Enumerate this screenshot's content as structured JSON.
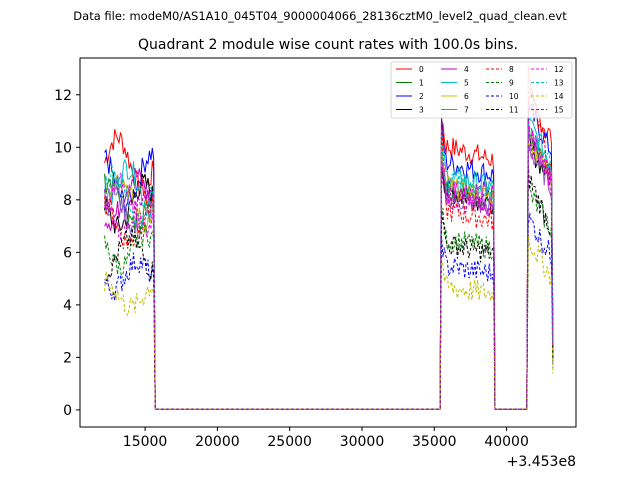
{
  "figure": {
    "suptitle": "Data file: modeM0/AS1A10_045T04_9000004066_28136cztM0_level2_quad_clean.evt"
  },
  "chart_data": {
    "type": "line",
    "title": "Quadrant 2 module wise count rates with 100.0s bins.",
    "xlabel": "",
    "ylabel": "",
    "x_offset_label": "+3.453e8",
    "xlim": [
      10500,
      44800
    ],
    "ylim": [
      -0.65,
      13.4
    ],
    "xticks": [
      15000,
      20000,
      25000,
      30000,
      35000,
      40000
    ],
    "xtick_labels": [
      "15000",
      "20000",
      "25000",
      "30000",
      "35000",
      "40000"
    ],
    "yticks": [
      0,
      2,
      4,
      6,
      8,
      10,
      12
    ],
    "ytick_labels": [
      "0",
      "2",
      "4",
      "6",
      "8",
      "10",
      "12"
    ],
    "grid": false,
    "legend_position": "top-right",
    "legend_columns": 4,
    "bin_seconds": 100,
    "segments": [
      {
        "start": 12200,
        "end": 15700,
        "active": true
      },
      {
        "start": 15700,
        "end": 35500,
        "active": false
      },
      {
        "start": 35500,
        "end": 39200,
        "active": true
      },
      {
        "start": 39200,
        "end": 41500,
        "active": false
      },
      {
        "start": 41500,
        "end": 43200,
        "active": true
      }
    ],
    "series": [
      {
        "name": "0",
        "color": "#ff0000",
        "dashed": false,
        "level": 9.9,
        "peak": 11.8
      },
      {
        "name": "1",
        "color": "#008000",
        "dashed": false,
        "level": 8.3,
        "peak": 10.3
      },
      {
        "name": "2",
        "color": "#0000ff",
        "dashed": false,
        "level": 9.3,
        "peak": 11.5
      },
      {
        "name": "3",
        "color": "#000000",
        "dashed": false,
        "level": 8.2,
        "peak": 10.1
      },
      {
        "name": "4",
        "color": "#bf00bf",
        "dashed": false,
        "level": 8.5,
        "peak": 10.7
      },
      {
        "name": "5",
        "color": "#00bfbf",
        "dashed": false,
        "level": 8.8,
        "peak": 11.0
      },
      {
        "name": "6",
        "color": "#bfbf00",
        "dashed": false,
        "level": 8.4,
        "peak": 10.4
      },
      {
        "name": "7",
        "color": "#9467bd",
        "dashed": false,
        "level": 8.0,
        "peak": 10.0
      },
      {
        "name": "8",
        "color": "#ff0000",
        "dashed": true,
        "level": 7.5,
        "peak": 12.8
      },
      {
        "name": "9",
        "color": "#008000",
        "dashed": true,
        "level": 6.4,
        "peak": 8.3
      },
      {
        "name": "10",
        "color": "#0000ff",
        "dashed": true,
        "level": 5.4,
        "peak": 7.3
      },
      {
        "name": "11",
        "color": "#000000",
        "dashed": true,
        "level": 6.2,
        "peak": 8.9
      },
      {
        "name": "12",
        "color": "#ff00ff",
        "dashed": true,
        "level": 8.2,
        "peak": 10.6
      },
      {
        "name": "13",
        "color": "#00bfbf",
        "dashed": true,
        "level": 8.6,
        "peak": 10.8
      },
      {
        "name": "14",
        "color": "#bfbf00",
        "dashed": true,
        "level": 4.6,
        "peak": 6.5
      },
      {
        "name": "15",
        "color": "#bf00bf",
        "dashed": true,
        "level": 8.0,
        "peak": 10.2
      }
    ]
  }
}
